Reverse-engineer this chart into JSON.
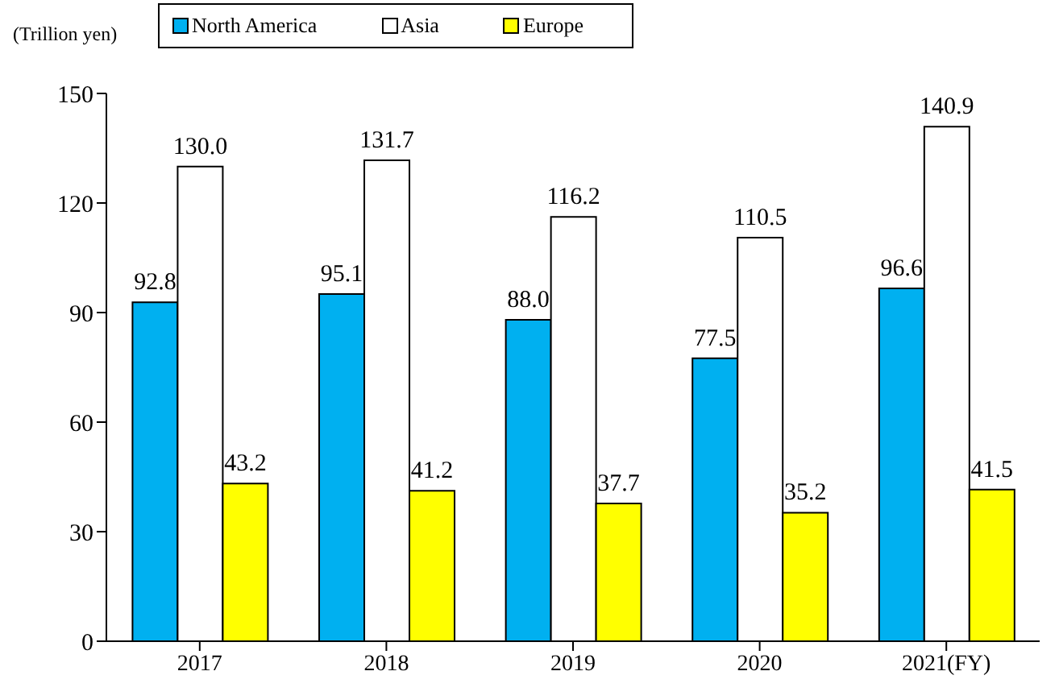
{
  "chart_data": {
    "type": "bar",
    "ylabel": "(Trillion yen)",
    "categories": [
      "2017",
      "2018",
      "2019",
      "2020",
      "2021(FY)"
    ],
    "series": [
      {
        "name": "North America",
        "color": "#00b0f0",
        "values": [
          92.8,
          95.1,
          88.0,
          77.5,
          96.6
        ],
        "value_labels": [
          "92.8",
          "95.1",
          "88.0",
          "77.5",
          "96.6"
        ]
      },
      {
        "name": "Asia",
        "color": "#ffffff",
        "values": [
          130.0,
          131.7,
          116.2,
          110.5,
          140.9
        ],
        "value_labels": [
          "130.0",
          "131.7",
          "116.2",
          "110.5",
          "140.9"
        ]
      },
      {
        "name": "Europe",
        "color": "#ffff00",
        "values": [
          43.2,
          41.2,
          37.7,
          35.2,
          41.5
        ],
        "value_labels": [
          "43.2",
          "41.2",
          "37.7",
          "35.2",
          "41.5"
        ]
      }
    ],
    "ylim": [
      0,
      150
    ],
    "yticks": [
      0,
      30,
      60,
      90,
      120,
      150
    ],
    "grid": false,
    "legend": "top"
  }
}
